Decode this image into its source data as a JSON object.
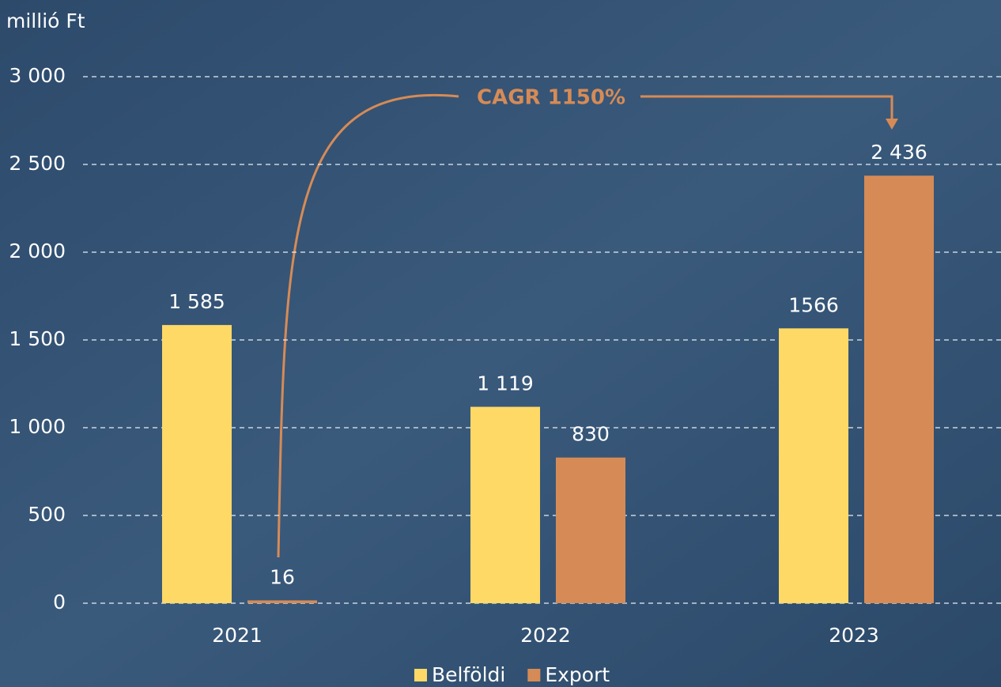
{
  "chart_data": {
    "type": "bar",
    "y_axis_label": "millió Ft",
    "categories": [
      "2021",
      "2022",
      "2023"
    ],
    "series": [
      {
        "name": "Belföldi",
        "color": "#ffd966",
        "values": [
          1585,
          1119,
          1566
        ],
        "value_labels": [
          "1 585",
          "1 119",
          "1566"
        ]
      },
      {
        "name": "Export",
        "color": "#d68b56",
        "values": [
          16,
          830,
          2436
        ],
        "value_labels": [
          "16",
          "830",
          "2 436"
        ]
      }
    ],
    "ylim": [
      0,
      3000
    ],
    "yticks": [
      0,
      500,
      {
        "value": 1000,
        "label": "1 000"
      },
      {
        "value": 1500,
        "label": "1 500"
      },
      {
        "value": 2000,
        "label": "2 000"
      },
      {
        "value": 2500,
        "label": "2 500"
      },
      {
        "value": 3000,
        "label": "3 000"
      }
    ],
    "grid": true,
    "annotation": "CAGR 1150%",
    "legend": "bottom"
  }
}
